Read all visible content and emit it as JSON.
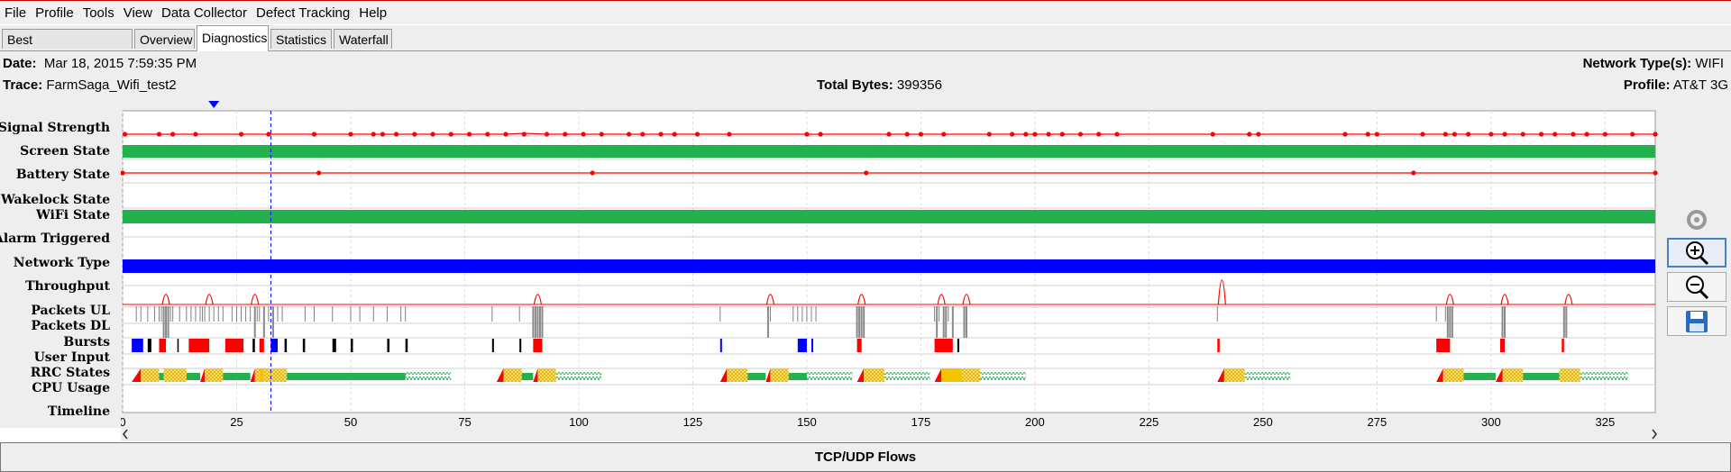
{
  "menu": [
    "File",
    "Profile",
    "Tools",
    "View",
    "Data Collector",
    "Defect Tracking",
    "Help"
  ],
  "tabs": [
    "Best Practices/Results",
    "Overview",
    "Diagnostics",
    "Statistics",
    "Waterfall"
  ],
  "active_tab": "Diagnostics",
  "info": {
    "date_label": "Date:",
    "date_value": "Mar 18, 2015 7:59:35 PM",
    "trace_label": "Trace:",
    "trace_value": "FarmSaga_Wifi_test2",
    "total_bytes_label": "Total Bytes:",
    "total_bytes_value": "399356",
    "network_types_label": "Network Type(s):",
    "network_types_value": "WIFI",
    "profile_label": "Profile:",
    "profile_value": "AT&T 3G"
  },
  "rows": [
    "Signal Strength",
    "Screen State",
    "Battery State",
    "Wakelock State",
    "WiFi State",
    "Alarm Triggered",
    "Network Type",
    "Throughput",
    "Packets UL",
    "Packets DL",
    "Bursts",
    "User Input",
    "RRC States",
    "CPU Usage",
    "Timeline"
  ],
  "timeline_ticks": [
    "0",
    "25",
    "50",
    "75",
    "100",
    "125",
    "150",
    "175",
    "200",
    "225",
    "250",
    "275",
    "300",
    "325"
  ],
  "side_icons": [
    "refresh-icon",
    "zoom-in-icon",
    "zoom-out-icon",
    "save-icon"
  ],
  "flows_title": "TCP/UDP Flows",
  "colors": {
    "signal": "#ff0000",
    "screen_state": "#22b14c",
    "network_type": "#0000ff",
    "rrc_promo": "#ff0000",
    "rrc_dch": "#f5c400",
    "rrc_fach": "#22b14c",
    "tail": "#22b14c",
    "burst_red": "#ff0000",
    "burst_blue": "#0000ff"
  },
  "chart_data": {
    "type": "timeline",
    "x_unit": "seconds",
    "xlim": [
      0,
      336
    ],
    "cursor_time": 32.5,
    "signal_points": [
      0.5,
      8,
      11,
      16,
      26,
      32,
      42,
      50,
      55,
      57,
      60,
      64,
      68,
      72,
      76,
      80,
      84,
      88,
      93,
      97,
      101,
      105,
      111,
      114,
      118,
      121,
      126,
      133,
      150,
      153,
      168,
      172,
      175,
      180,
      190,
      195,
      198,
      200,
      203,
      206,
      210,
      214,
      218,
      239,
      247,
      249,
      268,
      273,
      275,
      285,
      290,
      292,
      295,
      300,
      303,
      307,
      311,
      314,
      318,
      321,
      325,
      331,
      336
    ],
    "battery_points": [
      0,
      43,
      103,
      163,
      283,
      336
    ],
    "throughput_peaks": [
      9.5,
      19,
      29,
      91,
      142,
      162,
      179.5,
      185,
      241,
      291,
      303,
      317
    ],
    "packets_ul": [
      3,
      4,
      5.5,
      7,
      8,
      8.5,
      9,
      10,
      10.5,
      11,
      12.5,
      14,
      15,
      16,
      17,
      17.5,
      18,
      19,
      20,
      21,
      22,
      24,
      25,
      26,
      27,
      28,
      29,
      29.5,
      30,
      31,
      32,
      34,
      35,
      40,
      42,
      46,
      50,
      52,
      55,
      58,
      61,
      62,
      81,
      87,
      90,
      91,
      131,
      142,
      147,
      148,
      149,
      150,
      151,
      152,
      161,
      162,
      178,
      179,
      180,
      181,
      185,
      240,
      288,
      290,
      303,
      316
    ],
    "packets_dl": [
      9,
      9.5,
      10,
      29,
      31,
      33,
      90,
      90.5,
      91,
      91.5,
      92,
      141.5,
      161,
      161.5,
      162,
      162.5,
      178.5,
      180,
      180.5,
      182,
      184.5,
      185,
      290.5,
      291,
      291.5,
      302.5,
      303,
      316,
      316.5
    ],
    "bursts": [
      {
        "s": 2,
        "e": 4.5,
        "c": "blue"
      },
      {
        "s": 5.5,
        "e": 6.3,
        "c": "black"
      },
      {
        "s": 8,
        "e": 9.5,
        "c": "red"
      },
      {
        "s": 12,
        "e": 12.3,
        "c": "black"
      },
      {
        "s": 14.5,
        "e": 19,
        "c": "red"
      },
      {
        "s": 22.5,
        "e": 26.5,
        "c": "red"
      },
      {
        "s": 28.5,
        "e": 29,
        "c": "black"
      },
      {
        "s": 30,
        "e": 31,
        "c": "red"
      },
      {
        "s": 32.5,
        "e": 34,
        "c": "blue"
      },
      {
        "s": 35.5,
        "e": 36,
        "c": "black"
      },
      {
        "s": 39.5,
        "e": 40,
        "c": "black"
      },
      {
        "s": 46,
        "e": 46.8,
        "c": "black"
      },
      {
        "s": 50,
        "e": 50.5,
        "c": "black"
      },
      {
        "s": 58,
        "e": 58.5,
        "c": "black"
      },
      {
        "s": 62,
        "e": 62.5,
        "c": "black"
      },
      {
        "s": 81,
        "e": 81.4,
        "c": "black"
      },
      {
        "s": 87,
        "e": 87.4,
        "c": "black"
      },
      {
        "s": 90,
        "e": 92,
        "c": "red"
      },
      {
        "s": 131,
        "e": 131.4,
        "c": "blue"
      },
      {
        "s": 148,
        "e": 150,
        "c": "blue"
      },
      {
        "s": 151,
        "e": 151.4,
        "c": "blue"
      },
      {
        "s": 161,
        "e": 162,
        "c": "red"
      },
      {
        "s": 178,
        "e": 182,
        "c": "red"
      },
      {
        "s": 183,
        "e": 183.4,
        "c": "black"
      },
      {
        "s": 240,
        "e": 240.5,
        "c": "red"
      },
      {
        "s": 288,
        "e": 291,
        "c": "red"
      },
      {
        "s": 302,
        "e": 303,
        "c": "red"
      },
      {
        "s": 315.5,
        "e": 316,
        "c": "red"
      }
    ],
    "rrc": [
      {
        "t": "promo",
        "s": 2,
        "e": 4
      },
      {
        "t": "dch",
        "s": 4,
        "e": 8
      },
      {
        "t": "fach",
        "s": 8,
        "e": 9
      },
      {
        "t": "dch",
        "s": 9,
        "e": 14
      },
      {
        "t": "fach",
        "s": 14,
        "e": 17
      },
      {
        "t": "promo",
        "s": 17,
        "e": 18
      },
      {
        "t": "dch",
        "s": 18,
        "e": 22
      },
      {
        "t": "fach",
        "s": 22,
        "e": 28
      },
      {
        "t": "promo",
        "s": 28,
        "e": 29
      },
      {
        "t": "dch",
        "s": 29,
        "e": 30
      },
      {
        "t": "dch_solid",
        "s": 30,
        "e": 31
      },
      {
        "t": "dch",
        "s": 31,
        "e": 36
      },
      {
        "t": "fach",
        "s": 36,
        "e": 62
      },
      {
        "t": "tail",
        "s": 62,
        "e": 72
      },
      {
        "t": "promo",
        "s": 82,
        "e": 83.5
      },
      {
        "t": "dch",
        "s": 83.5,
        "e": 87.5
      },
      {
        "t": "fach",
        "s": 87.5,
        "e": 90
      },
      {
        "t": "promo",
        "s": 90,
        "e": 91
      },
      {
        "t": "dch",
        "s": 91,
        "e": 95
      },
      {
        "t": "tail",
        "s": 95,
        "e": 105
      },
      {
        "t": "promo",
        "s": 131,
        "e": 132.5
      },
      {
        "t": "dch",
        "s": 132.5,
        "e": 137
      },
      {
        "t": "fach",
        "s": 137,
        "e": 141
      },
      {
        "t": "promo",
        "s": 141,
        "e": 142
      },
      {
        "t": "dch",
        "s": 142,
        "e": 146
      },
      {
        "t": "fach",
        "s": 146,
        "e": 150
      },
      {
        "t": "tail",
        "s": 150,
        "e": 160
      },
      {
        "t": "promo",
        "s": 161,
        "e": 162.5
      },
      {
        "t": "dch",
        "s": 162.5,
        "e": 167
      },
      {
        "t": "tail",
        "s": 167,
        "e": 177
      },
      {
        "t": "promo",
        "s": 178,
        "e": 179.5
      },
      {
        "t": "dch_solid",
        "s": 179.5,
        "e": 184
      },
      {
        "t": "dch",
        "s": 184,
        "e": 188
      },
      {
        "t": "tail",
        "s": 188,
        "e": 198
      },
      {
        "t": "promo",
        "s": 240,
        "e": 241.5
      },
      {
        "t": "dch",
        "s": 241.5,
        "e": 246
      },
      {
        "t": "tail",
        "s": 246,
        "e": 256
      },
      {
        "t": "promo",
        "s": 288,
        "e": 289.5
      },
      {
        "t": "dch",
        "s": 289.5,
        "e": 294
      },
      {
        "t": "fach",
        "s": 294,
        "e": 301
      },
      {
        "t": "promo",
        "s": 301,
        "e": 302.5
      },
      {
        "t": "dch",
        "s": 302.5,
        "e": 307
      },
      {
        "t": "fach",
        "s": 307,
        "e": 315
      },
      {
        "t": "dch",
        "s": 315,
        "e": 319.5
      },
      {
        "t": "tail",
        "s": 319.5,
        "e": 330
      }
    ]
  }
}
